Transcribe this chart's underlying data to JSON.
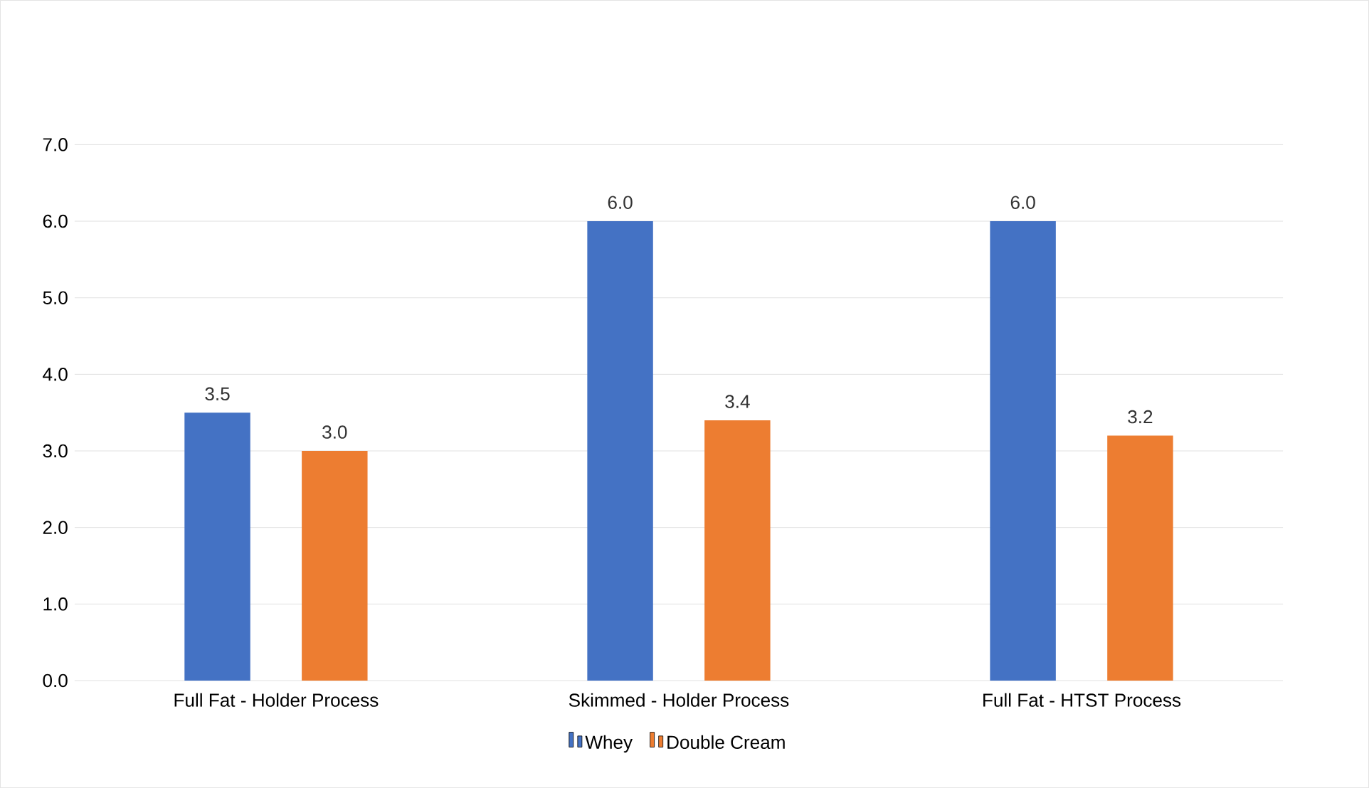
{
  "chart_data": {
    "type": "bar",
    "categories": [
      "Full Fat - Holder Process",
      "Skimmed - Holder Process",
      "Full Fat - HTST Process"
    ],
    "series": [
      {
        "name": "Whey",
        "color": "#4472c4",
        "values": [
          3.5,
          6.0,
          6.0
        ],
        "value_labels": [
          "3.5",
          "6.0",
          "6.0"
        ]
      },
      {
        "name": "Double Cream",
        "color": "#ed7d31",
        "values": [
          3.0,
          3.4,
          3.2
        ],
        "value_labels": [
          "3.0",
          "3.4",
          "3.2"
        ]
      }
    ],
    "ylim": [
      0,
      7
    ],
    "yticks": [
      {
        "value": 0,
        "label": "0.0"
      },
      {
        "value": 1,
        "label": "1.0"
      },
      {
        "value": 2,
        "label": "2.0"
      },
      {
        "value": 3,
        "label": "3.0"
      },
      {
        "value": 4,
        "label": "4.0"
      },
      {
        "value": 5,
        "label": "5.0"
      },
      {
        "value": 6,
        "label": "6.0"
      },
      {
        "value": 7,
        "label": "7.0"
      }
    ],
    "grid": "y",
    "legend": "bottom"
  }
}
